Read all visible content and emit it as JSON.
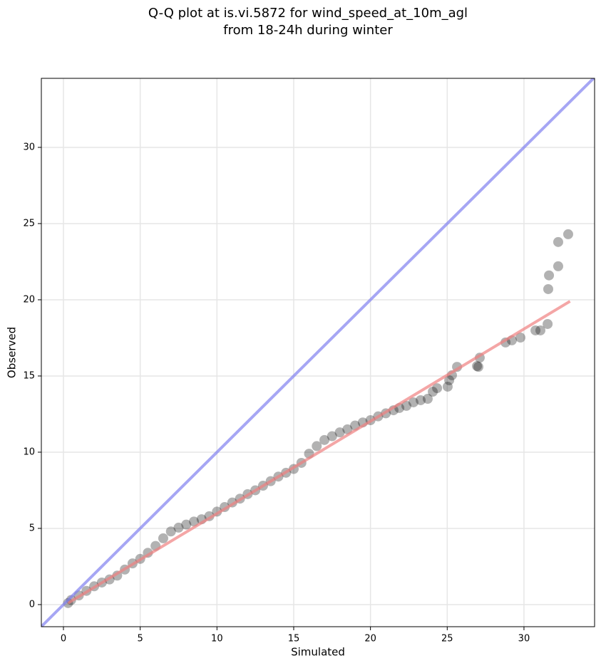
{
  "chart_data": {
    "type": "scatter",
    "title": [
      "Q-Q plot at is.vi.5872 for wind_speed_at_10m_agl",
      "from 18-24h during winter"
    ],
    "xlabel": "Simulated",
    "ylabel": "Observed",
    "xlim": [
      -1.44,
      34.6
    ],
    "ylim": [
      -1.45,
      34.53
    ],
    "xticks": [
      0,
      5,
      10,
      15,
      20,
      25,
      30
    ],
    "yticks": [
      0,
      5,
      10,
      15,
      20,
      25,
      30
    ],
    "grid": true,
    "series": [
      {
        "type": "scatter",
        "color": "#000000",
        "x": [
          0.3,
          0.5,
          1,
          1.5,
          2,
          2.5,
          3,
          3.5,
          4,
          4.5,
          5,
          5.5,
          6,
          6.5,
          7,
          7.5,
          8,
          8.5,
          9,
          9.5,
          10,
          10.5,
          11,
          11.5,
          12,
          12.5,
          13,
          13.5,
          14,
          14.5,
          15,
          15.5,
          16,
          16.5,
          17,
          17.5,
          18,
          18.5,
          19,
          19.5,
          20,
          20.5,
          21,
          21.5,
          21.88,
          22.34,
          22.8,
          23.27,
          23.73,
          24.06,
          24.34,
          25.03,
          25.13,
          25.31,
          25.64,
          26.94,
          27.03,
          27.12,
          28.8,
          29.21,
          29.77,
          30.75,
          31.07,
          31.54,
          31.58,
          31.63,
          32.23,
          32.23,
          32.88
        ],
        "values": [
          0.1,
          0.3,
          0.6,
          0.9,
          1.2,
          1.45,
          1.65,
          1.9,
          2.3,
          2.7,
          3.0,
          3.4,
          3.85,
          4.35,
          4.8,
          5.05,
          5.25,
          5.45,
          5.6,
          5.8,
          6.1,
          6.4,
          6.7,
          6.95,
          7.25,
          7.5,
          7.8,
          8.1,
          8.4,
          8.65,
          8.9,
          9.3,
          9.9,
          10.4,
          10.8,
          11.05,
          11.3,
          11.5,
          11.75,
          11.95,
          12.1,
          12.35,
          12.55,
          12.75,
          12.9,
          13.04,
          13.27,
          13.41,
          13.5,
          13.97,
          14.2,
          14.3,
          14.72,
          15.05,
          15.6,
          15.65,
          15.6,
          16.2,
          17.2,
          17.34,
          17.52,
          17.99,
          17.99,
          18.41,
          20.7,
          21.6,
          22.2,
          23.79,
          24.3
        ]
      },
      {
        "type": "line",
        "color": "#f08080",
        "x": [
          0.3,
          33
        ],
        "values": [
          0.1,
          19.9
        ]
      },
      {
        "type": "line",
        "color": "#8080f0",
        "x": [
          -1.44,
          34.6
        ],
        "values": [
          -1.44,
          34.6
        ]
      }
    ]
  }
}
